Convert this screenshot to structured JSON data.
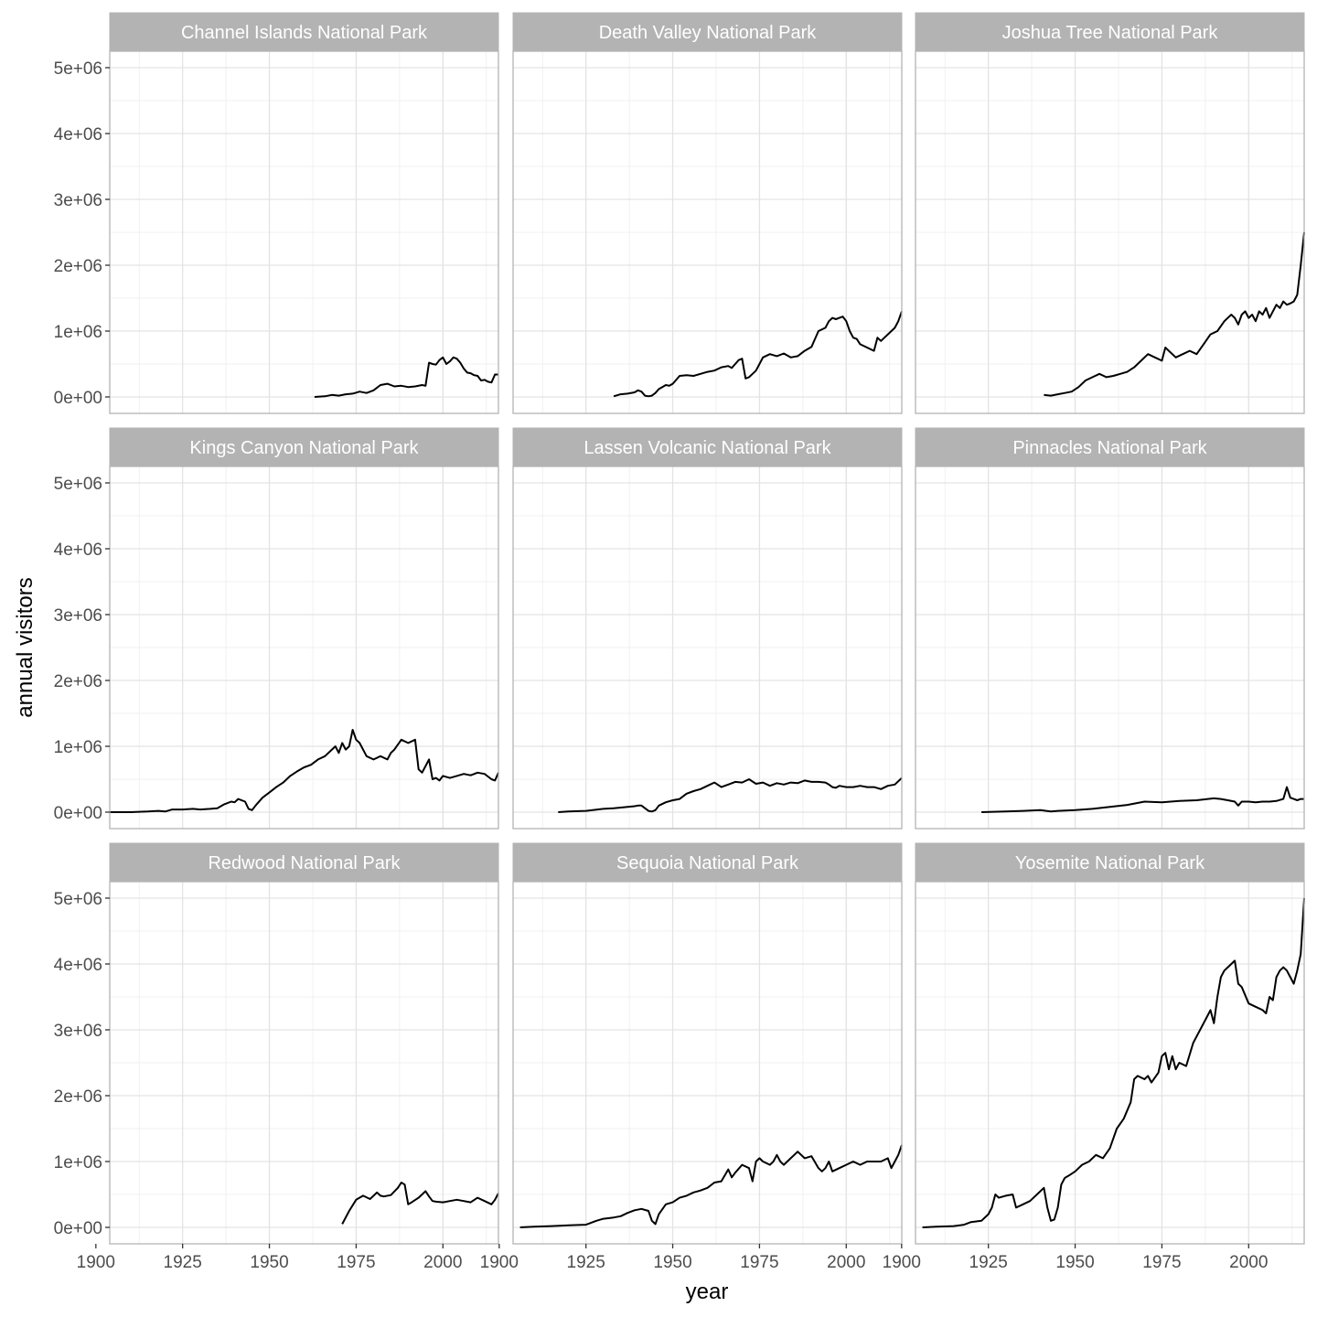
{
  "chart_data": {
    "type": "line",
    "layout": "facet-grid 3x3",
    "xlabel": "year",
    "ylabel": "annual visitors",
    "xlim": [
      1904,
      2016
    ],
    "ylim": [
      -250000,
      5250000
    ],
    "x_ticks": [
      1900,
      1925,
      1950,
      1975,
      2000
    ],
    "x_tick_labels": [
      "1900",
      "1925",
      "1950",
      "1975",
      "2000"
    ],
    "y_ticks": [
      0,
      1000000,
      2000000,
      3000000,
      4000000,
      5000000
    ],
    "y_tick_labels": [
      "0e+00",
      "1e+06",
      "2e+06",
      "3e+06",
      "4e+06",
      "5e+06"
    ],
    "grid": true,
    "line_color": "#000000",
    "strip_color": "#b3b3b3",
    "panels": [
      {
        "title": "Channel Islands National Park",
        "x": [
          1963,
          1966,
          1968,
          1970,
          1972,
          1974,
          1976,
          1978,
          1980,
          1982,
          1984,
          1986,
          1988,
          1990,
          1992,
          1994,
          1995,
          1996,
          1997,
          1998,
          1999,
          2000,
          2001,
          2002,
          2003,
          2004,
          2005,
          2006,
          2007,
          2008,
          2009,
          2010,
          2011,
          2012,
          2013,
          2014,
          2015,
          2016
        ],
        "y": [
          0,
          10000,
          30000,
          20000,
          40000,
          50000,
          80000,
          60000,
          100000,
          180000,
          200000,
          160000,
          170000,
          150000,
          160000,
          180000,
          170000,
          520000,
          500000,
          490000,
          560000,
          600000,
          500000,
          540000,
          600000,
          580000,
          520000,
          430000,
          370000,
          360000,
          330000,
          320000,
          250000,
          260000,
          230000,
          220000,
          340000,
          340000
        ]
      },
      {
        "title": "Death Valley National Park",
        "x": [
          1933,
          1935,
          1937,
          1939,
          1940,
          1941,
          1942,
          1943,
          1944,
          1945,
          1946,
          1947,
          1948,
          1949,
          1950,
          1952,
          1954,
          1956,
          1958,
          1960,
          1962,
          1964,
          1966,
          1967,
          1968,
          1969,
          1970,
          1971,
          1972,
          1973,
          1974,
          1975,
          1976,
          1978,
          1980,
          1982,
          1984,
          1986,
          1988,
          1990,
          1992,
          1994,
          1995,
          1996,
          1997,
          1998,
          1999,
          2000,
          2001,
          2002,
          2003,
          2004,
          2006,
          2008,
          2009,
          2010,
          2012,
          2013,
          2014,
          2015,
          2016
        ],
        "y": [
          10000,
          40000,
          50000,
          70000,
          100000,
          80000,
          20000,
          10000,
          20000,
          60000,
          120000,
          150000,
          180000,
          170000,
          200000,
          320000,
          330000,
          320000,
          350000,
          380000,
          400000,
          450000,
          470000,
          440000,
          500000,
          560000,
          580000,
          280000,
          300000,
          350000,
          400000,
          500000,
          600000,
          650000,
          620000,
          660000,
          600000,
          620000,
          700000,
          760000,
          1000000,
          1050000,
          1150000,
          1200000,
          1180000,
          1200000,
          1220000,
          1150000,
          1000000,
          900000,
          880000,
          800000,
          750000,
          700000,
          900000,
          850000,
          950000,
          1000000,
          1050000,
          1150000,
          1300000
        ]
      },
      {
        "title": "Joshua Tree National Park",
        "x": [
          1941,
          1943,
          1945,
          1947,
          1949,
          1951,
          1953,
          1955,
          1957,
          1959,
          1961,
          1963,
          1965,
          1967,
          1969,
          1971,
          1973,
          1975,
          1976,
          1977,
          1979,
          1981,
          1983,
          1985,
          1987,
          1989,
          1991,
          1993,
          1995,
          1996,
          1997,
          1998,
          1999,
          2000,
          2001,
          2002,
          2003,
          2004,
          2005,
          2006,
          2007,
          2008,
          2009,
          2010,
          2011,
          2012,
          2013,
          2014,
          2015,
          2016
        ],
        "y": [
          30000,
          20000,
          40000,
          60000,
          80000,
          150000,
          250000,
          300000,
          350000,
          300000,
          320000,
          350000,
          380000,
          450000,
          550000,
          650000,
          600000,
          550000,
          750000,
          700000,
          600000,
          650000,
          700000,
          650000,
          800000,
          950000,
          1000000,
          1150000,
          1250000,
          1200000,
          1100000,
          1250000,
          1300000,
          1200000,
          1250000,
          1150000,
          1300000,
          1250000,
          1350000,
          1200000,
          1300000,
          1400000,
          1350000,
          1450000,
          1400000,
          1420000,
          1450000,
          1550000,
          2000000,
          2500000
        ]
      },
      {
        "title": "Kings Canyon National Park",
        "x": [
          1904,
          1910,
          1915,
          1918,
          1920,
          1922,
          1925,
          1928,
          1930,
          1933,
          1935,
          1937,
          1939,
          1940,
          1941,
          1943,
          1944,
          1945,
          1946,
          1948,
          1950,
          1952,
          1954,
          1956,
          1958,
          1960,
          1962,
          1964,
          1966,
          1968,
          1969,
          1970,
          1971,
          1972,
          1973,
          1974,
          1975,
          1976,
          1978,
          1980,
          1982,
          1984,
          1985,
          1986,
          1988,
          1990,
          1992,
          1993,
          1994,
          1995,
          1996,
          1997,
          1998,
          1999,
          2000,
          2002,
          2004,
          2006,
          2008,
          2010,
          2012,
          2014,
          2015,
          2016
        ],
        "y": [
          0,
          0,
          10000,
          20000,
          10000,
          40000,
          40000,
          50000,
          40000,
          50000,
          60000,
          120000,
          160000,
          150000,
          200000,
          160000,
          50000,
          30000,
          100000,
          220000,
          300000,
          380000,
          450000,
          550000,
          620000,
          680000,
          720000,
          800000,
          850000,
          950000,
          1000000,
          900000,
          1050000,
          950000,
          1000000,
          1250000,
          1100000,
          1050000,
          850000,
          800000,
          850000,
          800000,
          900000,
          950000,
          1100000,
          1050000,
          1100000,
          650000,
          600000,
          700000,
          800000,
          500000,
          520000,
          480000,
          550000,
          520000,
          550000,
          580000,
          560000,
          600000,
          580000,
          500000,
          480000,
          600000
        ]
      },
      {
        "title": "Lassen Volcanic National Park",
        "x": [
          1917,
          1920,
          1925,
          1930,
          1933,
          1935,
          1937,
          1939,
          1940,
          1941,
          1942,
          1943,
          1944,
          1945,
          1946,
          1948,
          1950,
          1952,
          1954,
          1956,
          1958,
          1960,
          1962,
          1964,
          1966,
          1968,
          1970,
          1972,
          1974,
          1976,
          1978,
          1980,
          1982,
          1984,
          1986,
          1988,
          1990,
          1992,
          1994,
          1995,
          1996,
          1997,
          1998,
          2000,
          2002,
          2004,
          2006,
          2008,
          2010,
          2012,
          2014,
          2016
        ],
        "y": [
          0,
          10000,
          20000,
          50000,
          60000,
          70000,
          80000,
          90000,
          100000,
          100000,
          60000,
          20000,
          10000,
          30000,
          100000,
          150000,
          180000,
          200000,
          280000,
          320000,
          350000,
          400000,
          450000,
          380000,
          420000,
          460000,
          450000,
          500000,
          430000,
          450000,
          400000,
          440000,
          420000,
          450000,
          440000,
          480000,
          460000,
          460000,
          450000,
          420000,
          380000,
          370000,
          400000,
          380000,
          380000,
          400000,
          380000,
          380000,
          350000,
          400000,
          420000,
          520000
        ]
      },
      {
        "title": "Pinnacles National Park",
        "x": [
          1923,
          1930,
          1935,
          1940,
          1943,
          1945,
          1950,
          1955,
          1960,
          1965,
          1970,
          1975,
          1980,
          1985,
          1990,
          1992,
          1994,
          1996,
          1997,
          1998,
          2000,
          2002,
          2004,
          2006,
          2008,
          2010,
          2011,
          2012,
          2013,
          2014,
          2015,
          2016
        ],
        "y": [
          0,
          10000,
          20000,
          30000,
          10000,
          20000,
          30000,
          50000,
          80000,
          110000,
          160000,
          150000,
          170000,
          180000,
          210000,
          200000,
          180000,
          160000,
          100000,
          160000,
          160000,
          150000,
          160000,
          160000,
          170000,
          200000,
          380000,
          220000,
          200000,
          180000,
          200000,
          200000
        ]
      },
      {
        "title": "Redwood National Park",
        "x": [
          1971,
          1973,
          1975,
          1977,
          1979,
          1981,
          1982,
          1983,
          1985,
          1987,
          1988,
          1989,
          1990,
          1991,
          1993,
          1995,
          1996,
          1997,
          1998,
          2000,
          2002,
          2004,
          2006,
          2008,
          2010,
          2012,
          2014,
          2015,
          2016
        ],
        "y": [
          50000,
          250000,
          420000,
          480000,
          430000,
          530000,
          480000,
          470000,
          490000,
          600000,
          680000,
          650000,
          350000,
          380000,
          450000,
          550000,
          470000,
          400000,
          390000,
          380000,
          400000,
          420000,
          400000,
          380000,
          450000,
          400000,
          350000,
          420000,
          520000
        ]
      },
      {
        "title": "Sequoia National Park",
        "x": [
          1906,
          1910,
          1915,
          1920,
          1925,
          1928,
          1930,
          1933,
          1935,
          1937,
          1939,
          1941,
          1943,
          1944,
          1945,
          1946,
          1948,
          1950,
          1952,
          1954,
          1956,
          1958,
          1960,
          1962,
          1964,
          1966,
          1967,
          1968,
          1970,
          1972,
          1973,
          1974,
          1975,
          1976,
          1978,
          1979,
          1980,
          1981,
          1982,
          1983,
          1984,
          1985,
          1986,
          1988,
          1990,
          1992,
          1993,
          1994,
          1995,
          1996,
          1998,
          2000,
          2002,
          2004,
          2006,
          2008,
          2010,
          2012,
          2013,
          2014,
          2015,
          2016
        ],
        "y": [
          0,
          10000,
          20000,
          30000,
          40000,
          100000,
          130000,
          150000,
          170000,
          220000,
          260000,
          280000,
          250000,
          100000,
          50000,
          200000,
          350000,
          380000,
          450000,
          480000,
          530000,
          560000,
          600000,
          680000,
          700000,
          880000,
          760000,
          830000,
          950000,
          900000,
          700000,
          1000000,
          1050000,
          1000000,
          950000,
          1000000,
          1100000,
          1000000,
          950000,
          1000000,
          1050000,
          1100000,
          1150000,
          1050000,
          1080000,
          900000,
          850000,
          900000,
          1000000,
          850000,
          900000,
          950000,
          1000000,
          950000,
          1000000,
          1000000,
          1000000,
          1050000,
          900000,
          1000000,
          1100000,
          1250000
        ]
      },
      {
        "title": "Yosemite National Park",
        "x": [
          1906,
          1910,
          1915,
          1918,
          1920,
          1923,
          1925,
          1926,
          1927,
          1928,
          1930,
          1932,
          1933,
          1935,
          1937,
          1939,
          1941,
          1942,
          1943,
          1944,
          1945,
          1946,
          1947,
          1948,
          1950,
          1952,
          1954,
          1956,
          1958,
          1960,
          1962,
          1964,
          1966,
          1967,
          1968,
          1970,
          1971,
          1972,
          1974,
          1975,
          1976,
          1977,
          1978,
          1979,
          1980,
          1982,
          1984,
          1986,
          1988,
          1989,
          1990,
          1991,
          1992,
          1993,
          1994,
          1995,
          1996,
          1997,
          1998,
          2000,
          2002,
          2004,
          2005,
          2006,
          2007,
          2008,
          2009,
          2010,
          2011,
          2012,
          2013,
          2014,
          2015,
          2016
        ],
        "y": [
          0,
          10000,
          20000,
          40000,
          80000,
          100000,
          200000,
          300000,
          500000,
          450000,
          480000,
          500000,
          300000,
          350000,
          400000,
          500000,
          600000,
          300000,
          100000,
          120000,
          300000,
          650000,
          750000,
          780000,
          850000,
          950000,
          1000000,
          1100000,
          1050000,
          1200000,
          1500000,
          1650000,
          1900000,
          2250000,
          2300000,
          2250000,
          2300000,
          2200000,
          2350000,
          2600000,
          2650000,
          2400000,
          2600000,
          2400000,
          2500000,
          2450000,
          2800000,
          3000000,
          3200000,
          3300000,
          3100000,
          3500000,
          3800000,
          3900000,
          3950000,
          4000000,
          4050000,
          3700000,
          3650000,
          3400000,
          3350000,
          3300000,
          3250000,
          3500000,
          3450000,
          3800000,
          3900000,
          3950000,
          3900000,
          3800000,
          3700000,
          3900000,
          4150000,
          5000000
        ]
      }
    ]
  }
}
